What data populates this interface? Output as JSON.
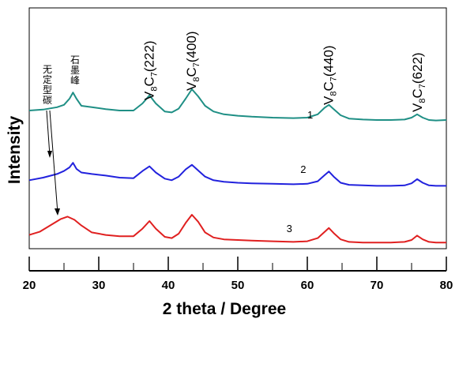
{
  "chart_data": {
    "type": "line",
    "title": "",
    "xlabel": "2 theta / Degree",
    "ylabel": "Intensity",
    "xlim": [
      20,
      80
    ],
    "xticks": [
      20,
      30,
      40,
      50,
      60,
      70,
      80
    ],
    "y_ticks_shown": false,
    "grid": false,
    "colors": {
      "1": "#1f8f85",
      "2": "#2222dd",
      "3": "#e02020"
    },
    "peak_labels": [
      {
        "main": "V",
        "sub1": "8",
        "mid": "C",
        "sub2": "7",
        "hkl": "(222)",
        "x": 37.2
      },
      {
        "main": "V",
        "sub1": "8",
        "mid": "C",
        "sub2": "7",
        "hkl": "(400)",
        "x": 43.3
      },
      {
        "main": "V",
        "sub1": "8",
        "mid": "C",
        "sub2": "7",
        "hkl": "(440)",
        "x": 63.0
      },
      {
        "main": "V",
        "sub1": "8",
        "mid": "C",
        "sub2": "7",
        "hkl": "(622)",
        "x": 75.8
      }
    ],
    "annotations": {
      "graphite": "石墨峰",
      "amorphous": "无定型碳"
    },
    "series": [
      {
        "name": "1",
        "x": [
          20,
          22,
          24,
          25,
          25.8,
          26.3,
          26.8,
          27.5,
          29,
          31,
          33,
          35,
          36.3,
          37.3,
          38.2,
          39.5,
          40.5,
          41.5,
          42.5,
          43.4,
          44.3,
          45.3,
          46.5,
          48,
          50,
          52,
          55,
          58,
          60,
          61.5,
          62.5,
          63.1,
          63.8,
          64.8,
          66,
          68,
          70,
          72,
          74,
          75,
          75.8,
          76.6,
          77.5,
          78.5,
          80
        ],
        "y": [
          0.3,
          0.32,
          0.37,
          0.42,
          0.55,
          0.68,
          0.55,
          0.4,
          0.37,
          0.33,
          0.3,
          0.3,
          0.45,
          0.62,
          0.45,
          0.28,
          0.26,
          0.34,
          0.55,
          0.75,
          0.6,
          0.4,
          0.28,
          0.22,
          0.19,
          0.17,
          0.15,
          0.14,
          0.15,
          0.22,
          0.36,
          0.42,
          0.33,
          0.2,
          0.13,
          0.11,
          0.1,
          0.1,
          0.11,
          0.15,
          0.22,
          0.15,
          0.1,
          0.09,
          0.1
        ]
      },
      {
        "name": "2",
        "x": [
          20,
          22,
          24,
          25,
          25.8,
          26.3,
          26.8,
          27.5,
          29,
          31,
          33,
          35,
          36.3,
          37.3,
          38.2,
          39.5,
          40.5,
          41.5,
          42.5,
          43.4,
          44.3,
          45.3,
          46.5,
          48,
          50,
          52,
          55,
          58,
          60,
          61.5,
          62.5,
          63.1,
          63.8,
          64.8,
          66,
          68,
          70,
          72,
          74,
          75,
          75.8,
          76.6,
          77.5,
          78.5,
          80
        ],
        "y": [
          0.15,
          0.2,
          0.27,
          0.33,
          0.4,
          0.49,
          0.37,
          0.3,
          0.27,
          0.24,
          0.2,
          0.19,
          0.33,
          0.42,
          0.3,
          0.18,
          0.15,
          0.22,
          0.36,
          0.45,
          0.34,
          0.22,
          0.15,
          0.12,
          0.1,
          0.09,
          0.08,
          0.07,
          0.08,
          0.13,
          0.25,
          0.32,
          0.22,
          0.1,
          0.06,
          0.05,
          0.04,
          0.04,
          0.05,
          0.09,
          0.17,
          0.1,
          0.05,
          0.04,
          0.04
        ]
      },
      {
        "name": "3",
        "x": [
          20,
          21.5,
          23,
          24.5,
          25.5,
          26.5,
          27.5,
          29,
          31,
          33,
          35,
          36.3,
          37.3,
          38.2,
          39.5,
          40.5,
          41.5,
          42.5,
          43.4,
          44.3,
          45.3,
          46.5,
          48,
          50,
          52,
          55,
          58,
          60,
          61.5,
          62.5,
          63.1,
          63.8,
          64.8,
          66,
          68,
          70,
          72,
          74,
          75,
          75.8,
          76.6,
          77.5,
          78.5,
          80
        ],
        "y": [
          0.13,
          0.18,
          0.28,
          0.38,
          0.42,
          0.37,
          0.28,
          0.17,
          0.13,
          0.11,
          0.11,
          0.23,
          0.35,
          0.23,
          0.1,
          0.08,
          0.15,
          0.32,
          0.45,
          0.34,
          0.17,
          0.09,
          0.06,
          0.05,
          0.04,
          0.03,
          0.02,
          0.03,
          0.08,
          0.18,
          0.24,
          0.16,
          0.06,
          0.02,
          0.01,
          0.01,
          0.01,
          0.02,
          0.05,
          0.12,
          0.06,
          0.02,
          0.01,
          0.01
        ]
      }
    ]
  }
}
